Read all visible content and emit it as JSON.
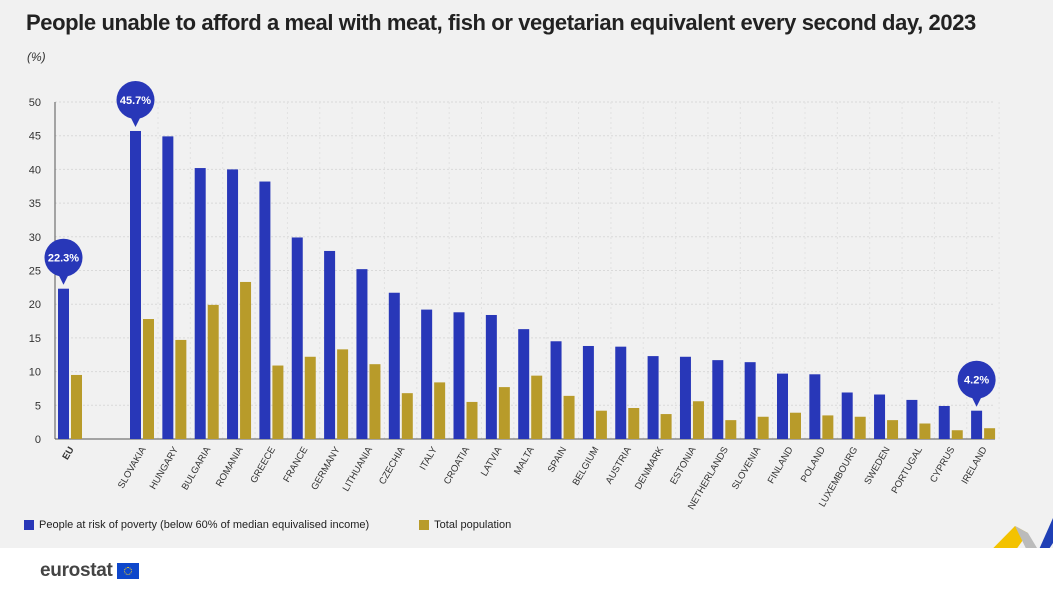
{
  "title": "People unable to afford a meal with meat, fish or vegetarian equivalent every second day, 2023",
  "unit": "(%)",
  "brand": "eurostat",
  "colors": {
    "poverty": "#2837b8",
    "total": "#b89b2a",
    "callout": "#2837b8"
  },
  "chart_data": {
    "type": "bar",
    "categories": [
      "EU",
      "SLOVAKIA",
      "HUNGARY",
      "BULGARIA",
      "ROMANIA",
      "GREECE",
      "FRANCE",
      "GERMANY",
      "LITHUANIA",
      "CZECHIA",
      "ITALY",
      "CROATIA",
      "LATVIA",
      "MALTA",
      "SPAIN",
      "BELGIUM",
      "AUSTRIA",
      "DENMARK",
      "ESTONIA",
      "NETHERLANDS",
      "SLOVENIA",
      "FINLAND",
      "POLAND",
      "LUXEMBOURG",
      "SWEDEN",
      "PORTUGAL",
      "CYPRUS",
      "IRELAND"
    ],
    "series": [
      {
        "name": "People at risk of poverty (below 60% of median equivalised income)",
        "values": [
          22.3,
          45.7,
          44.9,
          40.2,
          40.0,
          38.2,
          29.9,
          27.9,
          25.2,
          21.7,
          19.2,
          18.8,
          18.4,
          16.3,
          14.5,
          13.8,
          13.7,
          12.3,
          12.2,
          11.7,
          11.4,
          9.7,
          9.6,
          6.9,
          6.6,
          5.8,
          4.9,
          4.2
        ]
      },
      {
        "name": "Total population",
        "values": [
          9.5,
          17.8,
          14.7,
          19.9,
          23.3,
          10.9,
          12.2,
          13.3,
          11.1,
          6.8,
          8.4,
          5.5,
          7.7,
          9.4,
          6.4,
          4.2,
          4.6,
          3.7,
          5.6,
          2.8,
          3.3,
          3.9,
          3.5,
          3.3,
          2.8,
          2.3,
          1.3,
          1.6
        ]
      }
    ],
    "ylim": [
      0,
      50
    ],
    "yticks": [
      0,
      5,
      10,
      15,
      20,
      25,
      30,
      35,
      40,
      45,
      50
    ],
    "callouts": [
      {
        "index": 0,
        "label": "22.3%"
      },
      {
        "index": 1,
        "label": "45.7%"
      },
      {
        "index": 27,
        "label": "4.2%"
      }
    ],
    "grid": true,
    "legend_position": "bottom-left"
  }
}
